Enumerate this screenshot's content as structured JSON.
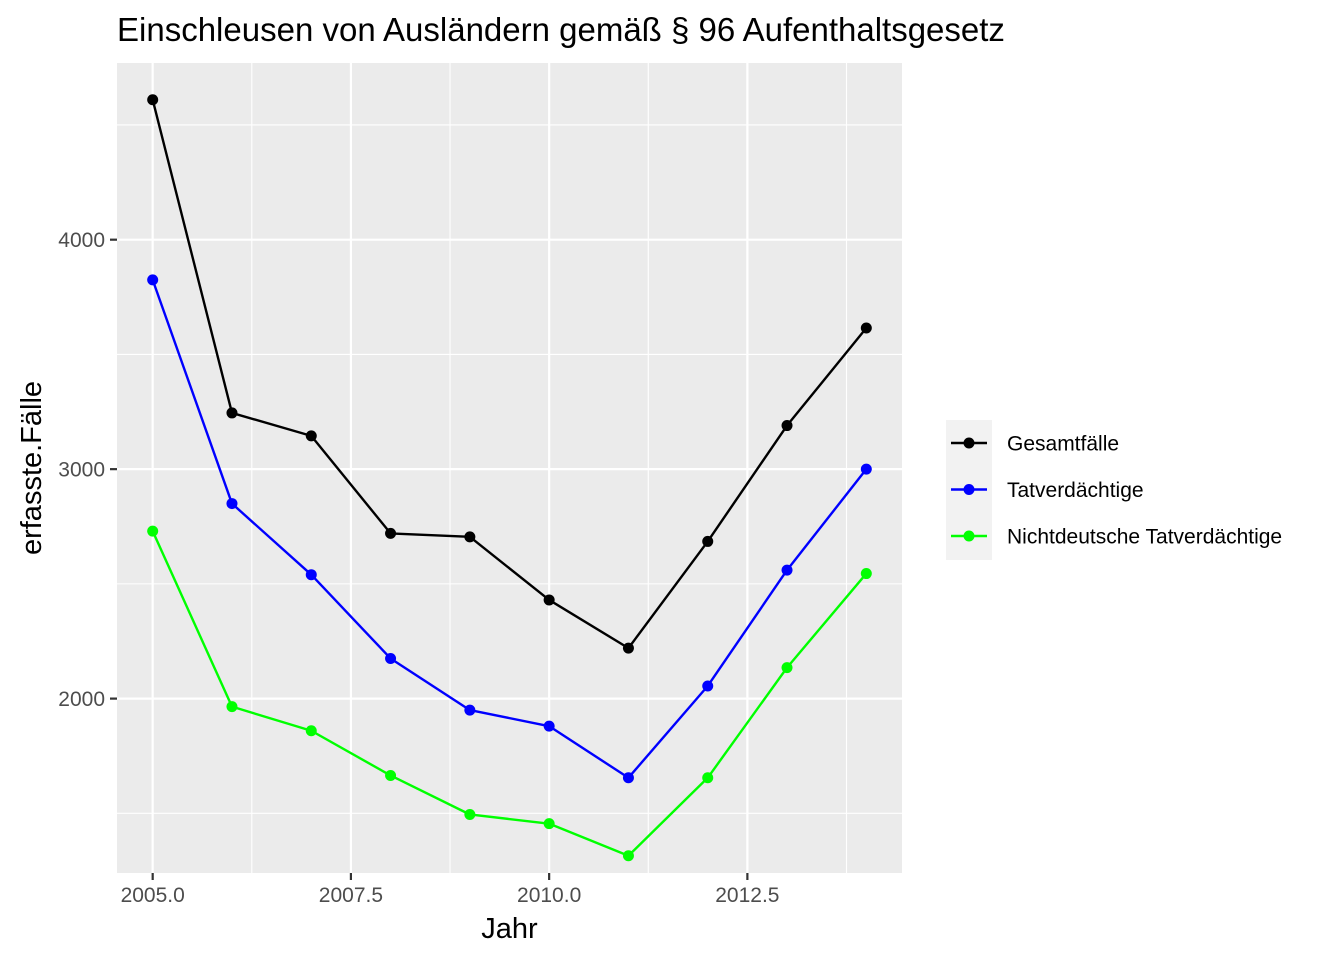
{
  "chart_data": {
    "type": "line",
    "title": "Einschleusen von Ausländern gemäß § 96 Aufenthaltsgesetz",
    "xlabel": "Jahr",
    "ylabel": "erfasste.Fälle",
    "x": [
      2005,
      2006,
      2007,
      2008,
      2009,
      2010,
      2011,
      2012,
      2013,
      2014
    ],
    "xlim": [
      2004.55,
      2014.45
    ],
    "ylim": [
      1240,
      4770
    ],
    "x_ticks": [
      2005.0,
      2007.5,
      2010.0,
      2012.5
    ],
    "x_tick_labels": [
      "2005.0",
      "2007.5",
      "2010.0",
      "2012.5"
    ],
    "y_ticks": [
      2000,
      3000,
      4000
    ],
    "y_tick_labels": [
      "2000",
      "3000",
      "4000"
    ],
    "grid": true,
    "legend_position": "right",
    "series": [
      {
        "name": "Gesamtfälle",
        "color": "#000000",
        "values": [
          4610,
          3245,
          3145,
          2720,
          2705,
          2430,
          2220,
          2685,
          3190,
          3615
        ]
      },
      {
        "name": "Tatverdächtige",
        "color": "#0000ff",
        "values": [
          3825,
          2850,
          2540,
          2175,
          1950,
          1880,
          1655,
          2055,
          2560,
          3000
        ]
      },
      {
        "name": "Nichtdeutsche Tatverdächtige",
        "color": "#00ff00",
        "values": [
          2730,
          1965,
          1860,
          1665,
          1495,
          1455,
          1315,
          1655,
          2135,
          2545
        ]
      }
    ]
  }
}
